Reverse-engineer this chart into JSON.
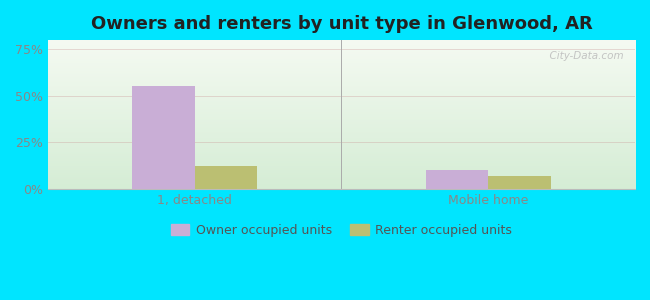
{
  "title": "Owners and renters by unit type in Glenwood, AR",
  "categories": [
    "1, detached",
    "Mobile home"
  ],
  "owner_values": [
    55.5,
    10.0
  ],
  "renter_values": [
    12.0,
    7.0
  ],
  "owner_color": "#c9aed6",
  "renter_color": "#bbbf72",
  "yticks": [
    0,
    25,
    50,
    75
  ],
  "ylim": [
    0,
    80
  ],
  "bar_width": 0.32,
  "outer_bg": "#00e5ff",
  "watermark": "  City-Data.com",
  "legend_labels": [
    "Owner occupied units",
    "Renter occupied units"
  ],
  "title_fontsize": 13,
  "tick_fontsize": 9,
  "legend_fontsize": 9,
  "xlim": [
    0,
    3.0
  ],
  "x_positions": [
    0.75,
    2.25
  ],
  "divider_x": 1.5,
  "grad_top_color": "#f5faf2",
  "grad_bottom_color": "#d5edd5"
}
